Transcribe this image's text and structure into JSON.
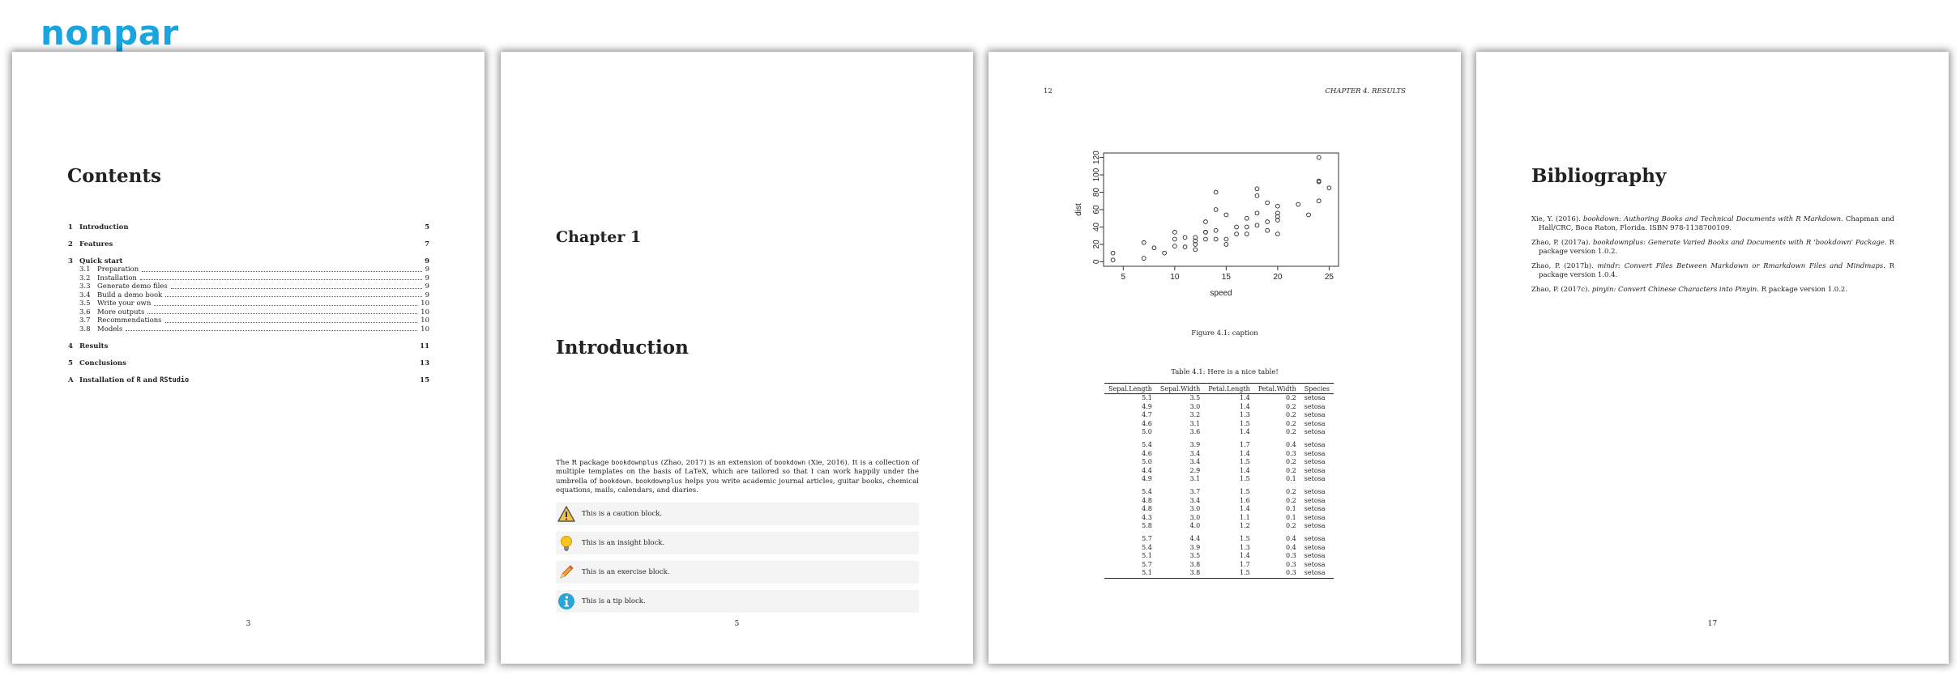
{
  "logo": "nonpar",
  "page1": {
    "title": "Contents",
    "page_number": "3",
    "toc": [
      {
        "num": "1",
        "title": "Introduction",
        "page": "5",
        "sections": []
      },
      {
        "num": "2",
        "title": "Features",
        "page": "7",
        "sections": []
      },
      {
        "num": "3",
        "title": "Quick start",
        "page": "9",
        "sections": [
          {
            "num": "3.1",
            "title": "Preparation",
            "page": "9"
          },
          {
            "num": "3.2",
            "title": "Installation",
            "page": "9"
          },
          {
            "num": "3.3",
            "title": "Generate demo files",
            "page": "9"
          },
          {
            "num": "3.4",
            "title": "Build a demo book",
            "page": "9"
          },
          {
            "num": "3.5",
            "title": "Write your own",
            "page": "10"
          },
          {
            "num": "3.6",
            "title": "More outputs",
            "page": "10"
          },
          {
            "num": "3.7",
            "title": "Recommendations",
            "page": "10"
          },
          {
            "num": "3.8",
            "title": "Models",
            "page": "10"
          }
        ]
      },
      {
        "num": "4",
        "title": "Results",
        "page": "11",
        "sections": []
      },
      {
        "num": "5",
        "title": "Conclusions",
        "page": "13",
        "sections": []
      }
    ],
    "appendix": {
      "num": "A",
      "pre": "Installation of ",
      "mono1": "R",
      "mid": " and ",
      "mono2": "RStudio",
      "page": "15"
    }
  },
  "page2": {
    "chapter_label": "Chapter 1",
    "chapter_title": "Introduction",
    "page_number": "5",
    "intro": {
      "t1": "The R package ",
      "c1": "bookdownplus",
      "t2": " (Zhao, 2017) is an extension of ",
      "c2": "bookdown",
      "t3": " (Xie, 2016). It is a collection of multiple templates on the basis of LaTeX, which are tailored so that I can work happily under the umbrella of ",
      "c3": "bookdown",
      "t4": ". ",
      "c4": "bookdownplus",
      "t5": " helps you write academic journal articles, guitar books, chemical equations, mails, calendars, and diaries."
    },
    "blocks": [
      {
        "icon": "caution-icon",
        "text": "This is a caution block."
      },
      {
        "icon": "insight-icon",
        "text": "This is an insight block."
      },
      {
        "icon": "exercise-icon",
        "text": "This is an exercise block."
      },
      {
        "icon": "tip-icon",
        "text": "This is a tip block."
      }
    ]
  },
  "page3": {
    "page_number": "12",
    "running_head": "CHAPTER 4.  RESULTS",
    "figure_caption": "Figure 4.1: caption",
    "table_caption": "Table 4.1: Here is a nice table!",
    "table": {
      "headers": [
        "Sepal.Length",
        "Sepal.Width",
        "Petal.Length",
        "Petal.Width",
        "Species"
      ],
      "rows": [
        [
          "5.1",
          "3.5",
          "1.4",
          "0.2",
          "setosa"
        ],
        [
          "4.9",
          "3.0",
          "1.4",
          "0.2",
          "setosa"
        ],
        [
          "4.7",
          "3.2",
          "1.3",
          "0.2",
          "setosa"
        ],
        [
          "4.6",
          "3.1",
          "1.5",
          "0.2",
          "setosa"
        ],
        [
          "5.0",
          "3.6",
          "1.4",
          "0.2",
          "setosa"
        ],
        [
          "5.4",
          "3.9",
          "1.7",
          "0.4",
          "setosa"
        ],
        [
          "4.6",
          "3.4",
          "1.4",
          "0.3",
          "setosa"
        ],
        [
          "5.0",
          "3.4",
          "1.5",
          "0.2",
          "setosa"
        ],
        [
          "4.4",
          "2.9",
          "1.4",
          "0.2",
          "setosa"
        ],
        [
          "4.9",
          "3.1",
          "1.5",
          "0.1",
          "setosa"
        ],
        [
          "5.4",
          "3.7",
          "1.5",
          "0.2",
          "setosa"
        ],
        [
          "4.8",
          "3.4",
          "1.6",
          "0.2",
          "setosa"
        ],
        [
          "4.8",
          "3.0",
          "1.4",
          "0.1",
          "setosa"
        ],
        [
          "4.3",
          "3.0",
          "1.1",
          "0.1",
          "setosa"
        ],
        [
          "5.8",
          "4.0",
          "1.2",
          "0.2",
          "setosa"
        ],
        [
          "5.7",
          "4.4",
          "1.5",
          "0.4",
          "setosa"
        ],
        [
          "5.4",
          "3.9",
          "1.3",
          "0.4",
          "setosa"
        ],
        [
          "5.1",
          "3.5",
          "1.4",
          "0.3",
          "setosa"
        ],
        [
          "5.7",
          "3.8",
          "1.7",
          "0.3",
          "setosa"
        ],
        [
          "5.1",
          "3.8",
          "1.5",
          "0.3",
          "setosa"
        ]
      ]
    }
  },
  "chart_data": {
    "type": "scatter",
    "xlabel": "speed",
    "ylabel": "dist",
    "xlim": [
      4,
      25
    ],
    "ylim": [
      0,
      120
    ],
    "x_ticks": [
      5,
      10,
      15,
      20,
      25
    ],
    "y_ticks": [
      0,
      20,
      40,
      60,
      80,
      100,
      120
    ],
    "grid": false,
    "x": [
      4,
      4,
      7,
      7,
      8,
      9,
      10,
      10,
      10,
      11,
      11,
      12,
      12,
      12,
      12,
      13,
      13,
      13,
      13,
      14,
      14,
      14,
      14,
      15,
      15,
      15,
      16,
      16,
      17,
      17,
      17,
      18,
      18,
      18,
      18,
      19,
      19,
      19,
      20,
      20,
      20,
      20,
      20,
      22,
      23,
      24,
      24,
      24,
      24,
      25
    ],
    "y": [
      2,
      10,
      4,
      22,
      16,
      10,
      18,
      26,
      34,
      17,
      28,
      14,
      20,
      24,
      28,
      26,
      34,
      34,
      46,
      26,
      36,
      60,
      80,
      20,
      26,
      54,
      32,
      40,
      32,
      40,
      50,
      42,
      56,
      76,
      84,
      36,
      46,
      68,
      32,
      48,
      52,
      56,
      64,
      66,
      54,
      70,
      92,
      93,
      120,
      85
    ]
  },
  "page4": {
    "title": "Bibliography",
    "page_number": "17",
    "entries": [
      {
        "pre": "Xie, Y. (2016). ",
        "italic": "bookdown: Authoring Books and Technical Documents with R Markdown",
        "post": ". Chapman and Hall/CRC, Boca Raton, Florida. ISBN 978-1138700109."
      },
      {
        "pre": "Zhao, P. (2017a). ",
        "italic": "bookdownplus: Generate Varied Books and Documents with R 'bookdown' Package",
        "post": ". R package version 1.0.2."
      },
      {
        "pre": "Zhao, P. (2017b). ",
        "italic": "mindr: Convert Files Between Markdown or Rmarkdown Files and Mindmaps",
        "post": ". R package version 1.0.4."
      },
      {
        "pre": "Zhao, P. (2017c). ",
        "italic": "pinyin: Convert Chinese Characters into Pinyin",
        "post": ". R package version 1.0.2."
      }
    ]
  }
}
